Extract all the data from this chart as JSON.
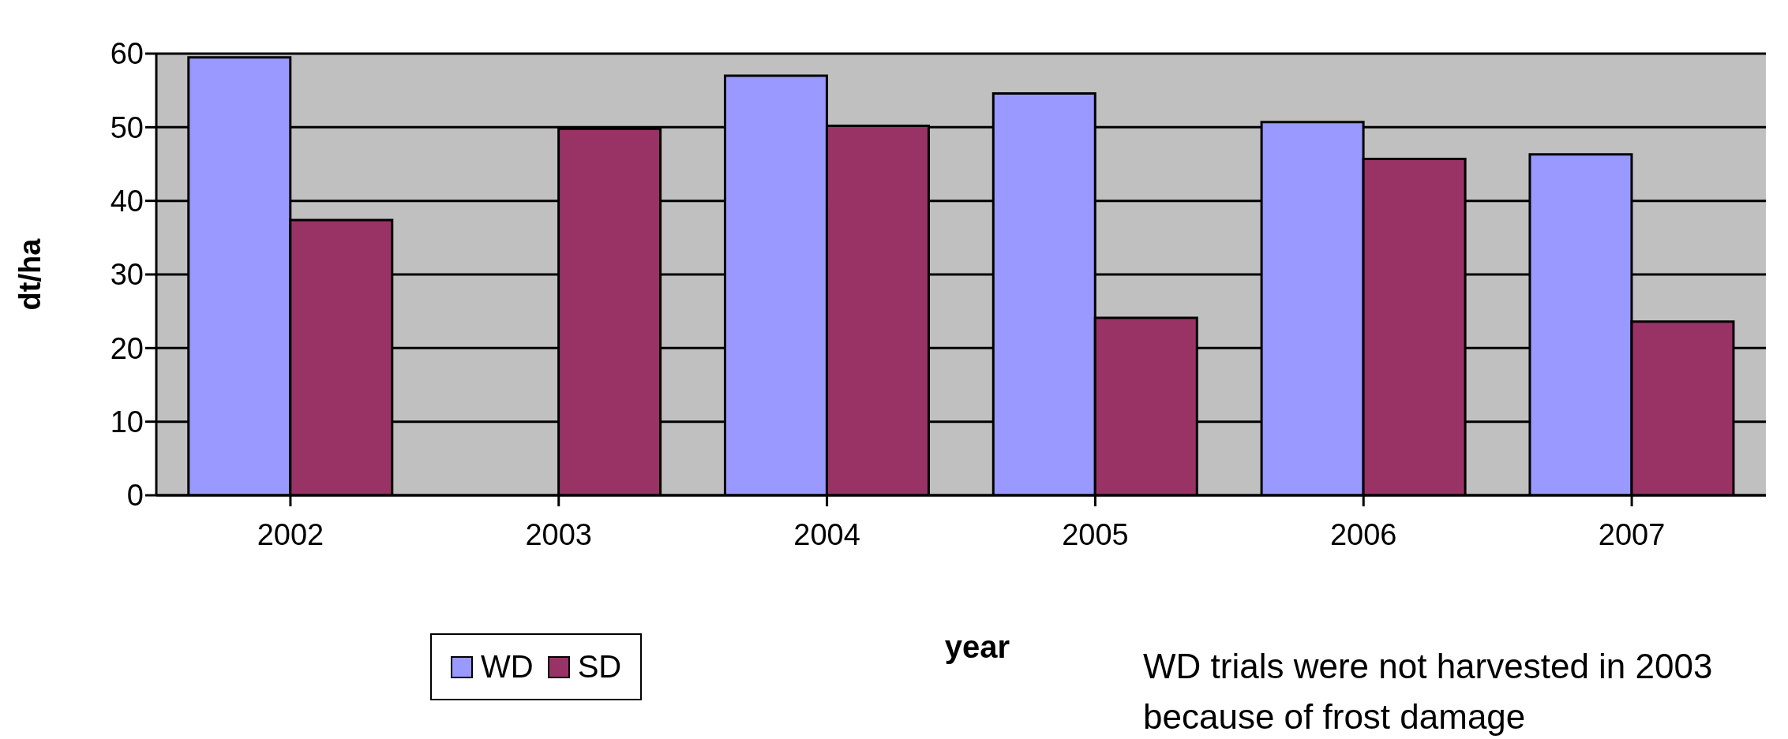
{
  "chart_data": {
    "type": "bar",
    "categories": [
      "2002",
      "2003",
      "2004",
      "2005",
      "2006",
      "2007"
    ],
    "series": [
      {
        "name": "WD",
        "color": "#9999ff",
        "values": [
          59.5,
          null,
          57.0,
          54.6,
          50.7,
          46.3
        ]
      },
      {
        "name": "SD",
        "color": "#993366",
        "values": [
          37.4,
          49.8,
          50.2,
          24.1,
          45.7,
          23.6
        ]
      }
    ],
    "xlabel": "year",
    "ylabel": "dt/ha",
    "ylim": [
      0,
      60
    ],
    "yticks": [
      0,
      10,
      20,
      30,
      40,
      50,
      60
    ],
    "grid": "y",
    "legend": "bottom left",
    "annotations": [
      "WD trials were not harvested in 2003 because of frost damage"
    ]
  }
}
